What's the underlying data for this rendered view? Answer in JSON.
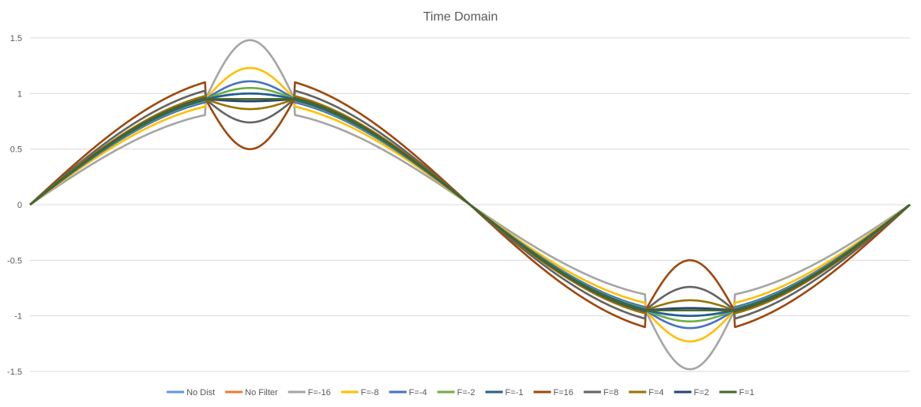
{
  "chart_data": {
    "type": "line",
    "title": "Time Domain",
    "xlabel": "",
    "ylabel": "",
    "ylim": [
      -1.5,
      1.5
    ],
    "yticks": [
      "1.5",
      "1",
      "0.5",
      "0",
      "-0.5",
      "-1",
      "-1.5"
    ],
    "ytick_values": [
      1.5,
      1,
      0.5,
      0,
      -0.5,
      -1,
      -1.5
    ],
    "grid": true,
    "legend_position": "bottom",
    "clip_level": 0.95,
    "series": [
      {
        "name": "No Dist",
        "color": "#5B9BD5",
        "curve_type": "sine",
        "amplitude": 1.0
      },
      {
        "name": "No Filter",
        "color": "#ED7D31",
        "curve_type": "clipped",
        "factor": 0.0
      },
      {
        "name": "F=-16",
        "color": "#A5A5A5",
        "curve_type": "clipped",
        "factor": -16,
        "clip_bump": 0.53,
        "outside_gain": 0.85
      },
      {
        "name": "F=-8",
        "color": "#FFC000",
        "curve_type": "clipped",
        "factor": -8,
        "clip_bump": 0.28,
        "outside_gain": 0.93
      },
      {
        "name": "F=-4",
        "color": "#4472C4",
        "curve_type": "clipped",
        "factor": -4,
        "clip_bump": 0.16,
        "outside_gain": 0.97
      },
      {
        "name": "F=-2",
        "color": "#70AD47",
        "curve_type": "clipped",
        "factor": -2,
        "clip_bump": 0.1,
        "outside_gain": 0.985
      },
      {
        "name": "F=-1",
        "color": "#255E91",
        "curve_type": "clipped",
        "factor": -1,
        "clip_bump": 0.05,
        "outside_gain": 0.993
      },
      {
        "name": "F=16",
        "color": "#9E480E",
        "curve_type": "clipped",
        "factor": 16,
        "clip_bump": -0.45,
        "outside_gain": 1.16
      },
      {
        "name": "F=8",
        "color": "#636363",
        "curve_type": "clipped",
        "factor": 8,
        "clip_bump": -0.21,
        "outside_gain": 1.08
      },
      {
        "name": "F=4",
        "color": "#997300",
        "curve_type": "clipped",
        "factor": 4,
        "clip_bump": -0.09,
        "outside_gain": 1.03
      },
      {
        "name": "F=2",
        "color": "#264478",
        "curve_type": "clipped",
        "factor": 2,
        "clip_bump": -0.02,
        "outside_gain": 1.01
      },
      {
        "name": "F=1",
        "color": "#43682B",
        "curve_type": "clipped",
        "factor": 1,
        "clip_bump": 0.0,
        "outside_gain": 1.005
      }
    ]
  }
}
